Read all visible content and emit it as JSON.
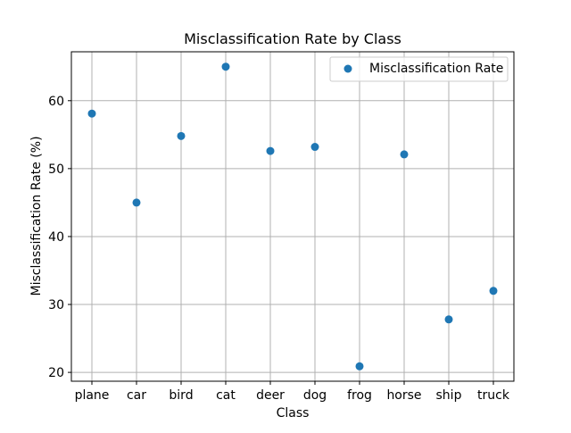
{
  "chart_data": {
    "type": "scatter",
    "title": "Misclassification Rate by Class",
    "xlabel": "Class",
    "ylabel": "Misclassification Rate (%)",
    "categories": [
      "plane",
      "car",
      "bird",
      "cat",
      "deer",
      "dog",
      "frog",
      "horse",
      "ship",
      "truck"
    ],
    "series": [
      {
        "name": "Misclassification Rate",
        "values": [
          58.1,
          45.0,
          54.8,
          65.0,
          52.6,
          53.2,
          20.9,
          52.1,
          27.8,
          32.0
        ],
        "color": "#1f77b4"
      }
    ],
    "yticks": [
      "20",
      "30",
      "40",
      "50",
      "60"
    ],
    "ylim": [
      18.7,
      67.2
    ],
    "grid": true,
    "legend_position": "top-right"
  }
}
